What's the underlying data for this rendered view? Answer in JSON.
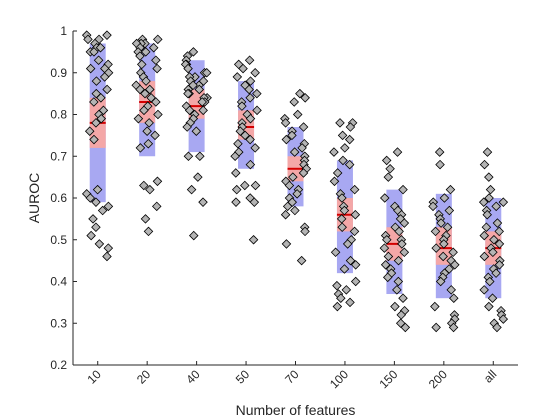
{
  "chart_data": {
    "type": "scatter",
    "xlabel": "Number of features",
    "ylabel": "AUROC",
    "ylim": [
      0.2,
      1.0
    ],
    "yticks": [
      "0.2",
      "0.3",
      "0.4",
      "0.5",
      "0.6",
      "0.7",
      "0.8",
      "0.9",
      "1"
    ],
    "categories": [
      "10",
      "20",
      "40",
      "50",
      "70",
      "100",
      "150",
      "200",
      "all"
    ],
    "grid": false,
    "colors": {
      "ci_band": "#f4a7a7",
      "sd_band": "#a8a8f2",
      "mean_line": "#d40000",
      "marker_fill": "#b4b4b4",
      "marker_edge": "#000000"
    },
    "groups": [
      {
        "category": "10",
        "mean": 0.78,
        "ci": [
          0.72,
          0.84
        ],
        "sd": [
          0.59,
          0.97
        ],
        "values": [
          0.99,
          0.99,
          0.98,
          0.98,
          0.97,
          0.96,
          0.96,
          0.95,
          0.95,
          0.93,
          0.92,
          0.91,
          0.91,
          0.9,
          0.89,
          0.88,
          0.86,
          0.85,
          0.84,
          0.83,
          0.81,
          0.8,
          0.79,
          0.78,
          0.76,
          0.74,
          0.62,
          0.61,
          0.6,
          0.59,
          0.58,
          0.57,
          0.55,
          0.53,
          0.51,
          0.49,
          0.48,
          0.46
        ]
      },
      {
        "category": "20",
        "mean": 0.83,
        "ci": [
          0.78,
          0.88
        ],
        "sd": [
          0.7,
          0.97
        ],
        "values": [
          0.98,
          0.98,
          0.97,
          0.97,
          0.97,
          0.96,
          0.96,
          0.95,
          0.95,
          0.94,
          0.93,
          0.92,
          0.91,
          0.9,
          0.89,
          0.88,
          0.87,
          0.86,
          0.86,
          0.85,
          0.84,
          0.83,
          0.82,
          0.81,
          0.8,
          0.79,
          0.78,
          0.76,
          0.75,
          0.73,
          0.72,
          0.64,
          0.63,
          0.62,
          0.58,
          0.55,
          0.52
        ]
      },
      {
        "category": "40",
        "mean": 0.82,
        "ci": [
          0.79,
          0.86
        ],
        "sd": [
          0.71,
          0.93
        ],
        "values": [
          0.95,
          0.94,
          0.93,
          0.92,
          0.92,
          0.91,
          0.9,
          0.9,
          0.89,
          0.89,
          0.88,
          0.88,
          0.87,
          0.87,
          0.86,
          0.86,
          0.85,
          0.85,
          0.84,
          0.84,
          0.83,
          0.83,
          0.82,
          0.81,
          0.81,
          0.8,
          0.79,
          0.78,
          0.77,
          0.76,
          0.7,
          0.7,
          0.65,
          0.62,
          0.59,
          0.51
        ]
      },
      {
        "category": "50",
        "mean": 0.77,
        "ci": [
          0.74,
          0.81
        ],
        "sd": [
          0.67,
          0.88
        ],
        "values": [
          0.93,
          0.92,
          0.91,
          0.9,
          0.89,
          0.88,
          0.87,
          0.86,
          0.85,
          0.84,
          0.83,
          0.82,
          0.81,
          0.8,
          0.79,
          0.78,
          0.77,
          0.76,
          0.75,
          0.74,
          0.73,
          0.72,
          0.71,
          0.7,
          0.68,
          0.66,
          0.63,
          0.63,
          0.62,
          0.6,
          0.59,
          0.59,
          0.5
        ]
      },
      {
        "category": "70",
        "mean": 0.67,
        "ci": [
          0.64,
          0.7
        ],
        "sd": [
          0.58,
          0.77
        ],
        "values": [
          0.85,
          0.84,
          0.83,
          0.8,
          0.79,
          0.78,
          0.77,
          0.76,
          0.75,
          0.74,
          0.73,
          0.72,
          0.71,
          0.7,
          0.69,
          0.68,
          0.67,
          0.66,
          0.65,
          0.64,
          0.63,
          0.62,
          0.61,
          0.6,
          0.59,
          0.58,
          0.57,
          0.56,
          0.53,
          0.52,
          0.49,
          0.45
        ]
      },
      {
        "category": "100",
        "mean": 0.56,
        "ci": [
          0.52,
          0.6
        ],
        "sd": [
          0.42,
          0.69
        ],
        "values": [
          0.78,
          0.78,
          0.77,
          0.75,
          0.74,
          0.72,
          0.71,
          0.69,
          0.68,
          0.66,
          0.64,
          0.62,
          0.61,
          0.6,
          0.58,
          0.57,
          0.56,
          0.55,
          0.53,
          0.52,
          0.5,
          0.49,
          0.47,
          0.45,
          0.44,
          0.43,
          0.4,
          0.39,
          0.38,
          0.37,
          0.36,
          0.35,
          0.34
        ]
      },
      {
        "category": "150",
        "mean": 0.49,
        "ci": [
          0.45,
          0.53
        ],
        "sd": [
          0.37,
          0.62
        ],
        "values": [
          0.71,
          0.69,
          0.67,
          0.65,
          0.62,
          0.6,
          0.58,
          0.57,
          0.56,
          0.55,
          0.54,
          0.53,
          0.52,
          0.51,
          0.5,
          0.5,
          0.49,
          0.48,
          0.47,
          0.46,
          0.45,
          0.44,
          0.43,
          0.42,
          0.41,
          0.4,
          0.38,
          0.36,
          0.34,
          0.33,
          0.32,
          0.3,
          0.29
        ]
      },
      {
        "category": "200",
        "mean": 0.48,
        "ci": [
          0.44,
          0.53
        ],
        "sd": [
          0.36,
          0.61
        ],
        "values": [
          0.71,
          0.68,
          0.62,
          0.6,
          0.59,
          0.58,
          0.57,
          0.56,
          0.55,
          0.54,
          0.53,
          0.52,
          0.51,
          0.5,
          0.49,
          0.48,
          0.47,
          0.46,
          0.45,
          0.44,
          0.43,
          0.42,
          0.41,
          0.4,
          0.38,
          0.36,
          0.34,
          0.32,
          0.31,
          0.3,
          0.29,
          0.29
        ]
      },
      {
        "category": "all",
        "mean": 0.48,
        "ci": [
          0.44,
          0.52
        ],
        "sd": [
          0.36,
          0.6
        ],
        "values": [
          0.71,
          0.68,
          0.65,
          0.62,
          0.6,
          0.59,
          0.59,
          0.58,
          0.57,
          0.56,
          0.54,
          0.53,
          0.52,
          0.51,
          0.5,
          0.49,
          0.48,
          0.47,
          0.46,
          0.45,
          0.44,
          0.43,
          0.42,
          0.41,
          0.4,
          0.38,
          0.36,
          0.34,
          0.33,
          0.32,
          0.31,
          0.3,
          0.29
        ]
      }
    ]
  }
}
